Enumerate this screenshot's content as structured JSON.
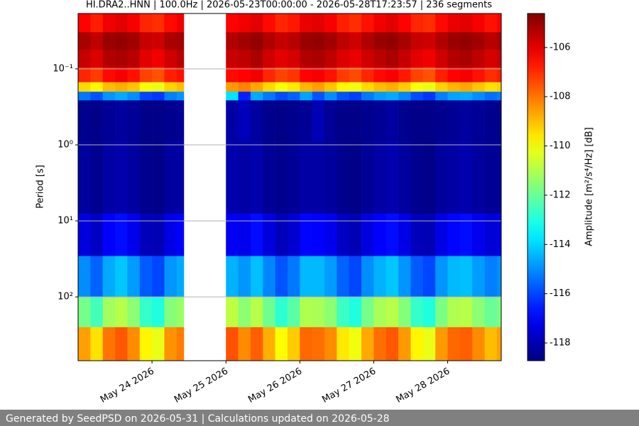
{
  "chart_data": {
    "type": "spectrogram",
    "title": "HI.DRA2..HNN | 100.0Hz | 2026-05-23T00:00:00 - 2026-05-28T17:23:57 | 236 segments",
    "ylabel": "Period [s]",
    "colorbar_label": "Amplitude [m²/s⁴/Hz] [dB]",
    "colormap": "jet",
    "y_log": true,
    "y_inverted": true,
    "grid": true,
    "xlim": [
      "2026-05-23T00:00:00",
      "2026-05-28T17:23:57"
    ],
    "xticks": [
      {
        "value": "2026-05-24T00:00:00",
        "label": "May 24 2026"
      },
      {
        "value": "2026-05-25T00:00:00",
        "label": "May 25 2026"
      },
      {
        "value": "2026-05-26T00:00:00",
        "label": "May 26 2026"
      },
      {
        "value": "2026-05-27T00:00:00",
        "label": "May 27 2026"
      },
      {
        "value": "2026-05-28T00:00:00",
        "label": "May 28 2026"
      }
    ],
    "ylim": [
      0.0187,
      690
    ],
    "yticks": [
      {
        "value": 0.1,
        "label": "10⁻¹"
      },
      {
        "value": 1,
        "label": "10⁰"
      },
      {
        "value": 10,
        "label": "10¹"
      },
      {
        "value": 100,
        "label": "10²"
      }
    ],
    "clim": [
      -118.72,
      -104.62
    ],
    "cticks": [
      -106,
      -108,
      -110,
      -112,
      -114,
      -116,
      -118
    ],
    "x_edges": [
      "2026-05-23T00:00:00",
      "2026-05-23T04:00:00",
      "2026-05-23T08:00:00",
      "2026-05-23T12:00:00",
      "2026-05-23T16:00:00",
      "2026-05-23T20:00:00",
      "2026-05-24T00:00:00",
      "2026-05-24T04:00:00",
      "2026-05-24T08:00:00",
      "2026-05-24T10:20:00",
      "2026-05-25T00:00:00",
      "2026-05-25T04:00:00",
      "2026-05-25T08:00:00",
      "2026-05-25T12:00:00",
      "2026-05-25T16:00:00",
      "2026-05-25T20:00:00",
      "2026-05-26T00:00:00",
      "2026-05-26T04:00:00",
      "2026-05-26T08:00:00",
      "2026-05-26T12:00:00",
      "2026-05-26T16:00:00",
      "2026-05-26T20:00:00",
      "2026-05-27T00:00:00",
      "2026-05-27T04:00:00",
      "2026-05-27T08:00:00",
      "2026-05-27T12:00:00",
      "2026-05-27T16:00:00",
      "2026-05-27T20:00:00",
      "2026-05-28T00:00:00",
      "2026-05-28T04:00:00",
      "2026-05-28T08:00:00",
      "2026-05-28T12:00:00",
      "2026-05-28T16:00:00",
      "2026-05-28T17:23:57"
    ],
    "y_edges": [
      0.0187,
      0.033,
      0.056,
      0.096,
      0.15,
      0.2,
      0.26,
      0.9,
      8,
      29,
      100,
      250,
      690
    ],
    "values": [
      [
        -106.4,
        -105.2,
        -105.6,
        -106.9,
        -109.4,
        -115.3,
        -118.5,
        -118.3,
        -117.4,
        -115.0,
        -111.8,
        -108.6
      ],
      [
        -106.8,
        -105.5,
        -105.9,
        -107.2,
        -109.8,
        -115.8,
        -118.6,
        -118.5,
        -117.8,
        -115.6,
        -112.5,
        -109.5
      ],
      [
        -106.2,
        -105.0,
        -105.3,
        -106.5,
        -109.0,
        -114.9,
        -118.4,
        -118.2,
        -117.0,
        -114.6,
        -111.2,
        -108.0
      ],
      [
        -106.0,
        -104.9,
        -105.2,
        -106.3,
        -108.8,
        -114.6,
        -118.3,
        -118.1,
        -116.8,
        -114.2,
        -110.9,
        -107.6
      ],
      [
        -106.3,
        -105.1,
        -105.4,
        -106.6,
        -109.1,
        -115.0,
        -118.4,
        -118.3,
        -117.2,
        -114.8,
        -111.5,
        -108.3
      ],
      [
        -106.9,
        -105.6,
        -106.0,
        -107.3,
        -110.0,
        -116.0,
        -118.6,
        -118.5,
        -117.9,
        -115.7,
        -112.7,
        -109.8
      ],
      [
        -107.0,
        -105.7,
        -106.2,
        -107.5,
        -110.2,
        -116.2,
        -118.6,
        -118.6,
        -118.0,
        -116.0,
        -113.0,
        -110.2
      ],
      [
        -106.5,
        -105.2,
        -105.7,
        -106.8,
        -109.3,
        -115.2,
        -118.5,
        -118.3,
        -117.3,
        -114.9,
        -111.6,
        -108.4
      ],
      [
        -106.2,
        -105.1,
        -105.4,
        -106.6,
        -109.0,
        -114.9,
        -118.4,
        -118.2,
        -117.0,
        -114.6,
        -111.3,
        -108.1
      ],
      null,
      [
        -106.4,
        -105.3,
        -105.6,
        -106.5,
        -108.5,
        -113.8,
        -118.2,
        -118.1,
        -117.1,
        -114.5,
        -110.8,
        -107.5
      ],
      [
        -106.2,
        -105.1,
        -105.5,
        -106.4,
        -108.2,
        -116.5,
        -117.9,
        -118.2,
        -117.2,
        -114.9,
        -111.5,
        -108.3
      ],
      [
        -106.0,
        -104.9,
        -105.2,
        -106.2,
        -108.7,
        -114.6,
        -118.3,
        -118.1,
        -116.8,
        -114.3,
        -110.9,
        -107.7
      ],
      [
        -106.5,
        -105.3,
        -105.7,
        -106.9,
        -109.4,
        -115.3,
        -118.5,
        -118.4,
        -117.4,
        -115.1,
        -111.9,
        -108.8
      ],
      [
        -106.9,
        -105.6,
        -106.0,
        -107.3,
        -110.0,
        -115.9,
        -118.6,
        -118.5,
        -117.9,
        -115.8,
        -112.8,
        -109.9
      ],
      [
        -106.7,
        -105.4,
        -105.8,
        -107.1,
        -109.6,
        -115.6,
        -118.5,
        -118.4,
        -117.6,
        -115.3,
        -112.2,
        -109.2
      ],
      [
        -106.1,
        -105.0,
        -105.3,
        -106.4,
        -108.9,
        -114.7,
        -118.4,
        -118.2,
        -116.9,
        -114.4,
        -111.0,
        -107.8
      ],
      [
        -106.0,
        -104.9,
        -105.2,
        -106.3,
        -108.6,
        -115.8,
        -118.0,
        -118.2,
        -117.0,
        -114.4,
        -111.1,
        -107.9
      ],
      [
        -106.3,
        -105.1,
        -105.5,
        -106.6,
        -109.1,
        -115.0,
        -118.4,
        -118.3,
        -117.2,
        -114.8,
        -111.5,
        -108.3
      ],
      [
        -106.8,
        -105.5,
        -105.9,
        -107.2,
        -109.8,
        -115.8,
        -118.6,
        -118.5,
        -117.8,
        -115.6,
        -112.6,
        -109.6
      ],
      [
        -107.0,
        -105.7,
        -106.1,
        -107.4,
        -110.1,
        -116.1,
        -118.6,
        -118.6,
        -118.0,
        -116.0,
        -113.0,
        -110.1
      ],
      [
        -106.6,
        -105.3,
        -105.7,
        -106.9,
        -109.4,
        -115.3,
        -118.5,
        -118.4,
        -117.4,
        -115.0,
        -111.8,
        -108.7
      ],
      [
        -106.2,
        -105.0,
        -105.4,
        -106.5,
        -109.0,
        -114.8,
        -118.4,
        -118.2,
        -117.0,
        -114.5,
        -111.1,
        -107.9
      ],
      [
        -106.0,
        -104.9,
        -105.2,
        -106.3,
        -108.8,
        -114.6,
        -118.3,
        -118.1,
        -116.8,
        -114.2,
        -110.9,
        -107.6
      ],
      [
        -106.4,
        -105.2,
        -105.6,
        -106.7,
        -109.2,
        -115.1,
        -118.5,
        -118.3,
        -117.3,
        -114.9,
        -111.6,
        -108.5
      ],
      [
        -106.9,
        -105.6,
        -106.0,
        -107.3,
        -110.0,
        -115.9,
        -118.6,
        -118.5,
        -117.9,
        -115.7,
        -112.7,
        -109.8
      ],
      [
        -107.0,
        -105.7,
        -106.2,
        -107.5,
        -110.2,
        -116.2,
        -118.6,
        -118.6,
        -118.0,
        -116.0,
        -113.0,
        -110.2
      ],
      [
        -106.5,
        -105.3,
        -105.7,
        -106.8,
        -109.3,
        -115.2,
        -118.5,
        -118.3,
        -117.3,
        -114.9,
        -111.7,
        -108.5
      ],
      [
        -106.1,
        -105.0,
        -105.3,
        -106.4,
        -108.9,
        -114.7,
        -118.4,
        -118.2,
        -116.9,
        -114.4,
        -111.0,
        -107.8
      ],
      [
        -106.0,
        -104.9,
        -105.2,
        -106.3,
        -108.7,
        -114.6,
        -118.3,
        -118.1,
        -116.8,
        -114.3,
        -110.9,
        -107.7
      ],
      [
        -106.3,
        -105.1,
        -105.5,
        -106.6,
        -109.1,
        -115.0,
        -118.4,
        -118.3,
        -117.2,
        -114.8,
        -111.5,
        -108.3
      ],
      [
        -106.6,
        -105.4,
        -105.8,
        -107.0,
        -109.5,
        -115.4,
        -118.5,
        -118.4,
        -117.5,
        -115.2,
        -112.0,
        -109.0
      ],
      [
        -106.4,
        -105.2,
        -105.6,
        -106.8,
        -109.3,
        -115.2,
        -118.5,
        -118.3,
        -117.3,
        -115.0,
        -111.7,
        -108.6
      ]
    ]
  },
  "footer": "Generated by SeedPSD on 2026-05-31 | Calculations updated on 2026-05-28"
}
